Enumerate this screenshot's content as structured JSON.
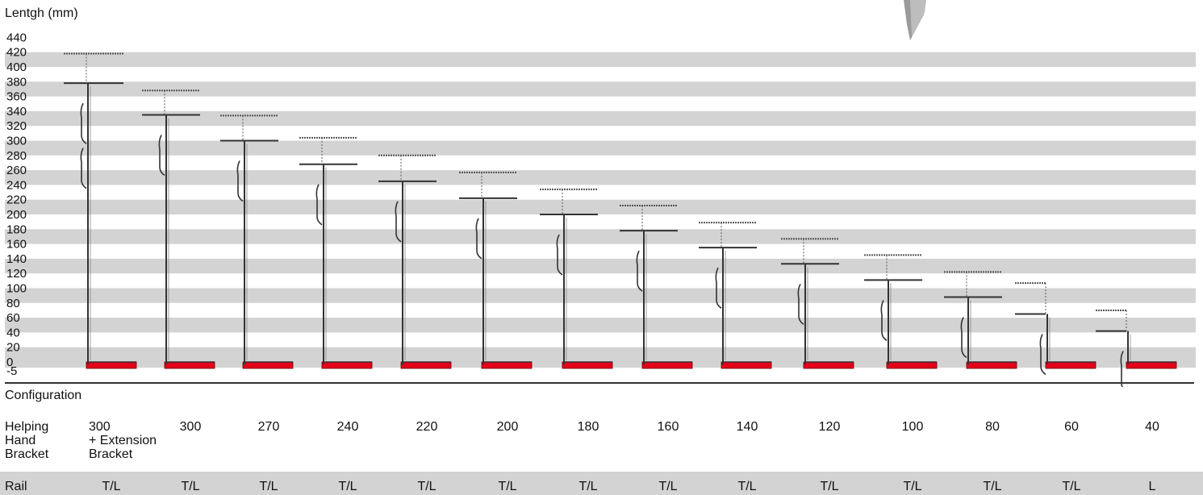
{
  "y_axis_label": "Lentgh (mm)",
  "y_ticks": [
    "440",
    "420",
    "400",
    "380",
    "360",
    "340",
    "320",
    "300",
    "280",
    "260",
    "240",
    "220",
    "200",
    "180",
    "160",
    "140",
    "120",
    "100",
    "80",
    "60",
    "40",
    "20",
    "0",
    "-5"
  ],
  "configuration_label": "Configuration",
  "rows": {
    "bracket_label": "Helping Hand Bracket",
    "bracket_values": [
      "300 + Extension Bracket",
      "300",
      "270",
      "240",
      "220",
      "200",
      "180",
      "160",
      "140",
      "120",
      "100",
      "80",
      "60",
      "40"
    ],
    "rail_label": "Rail",
    "rail_values": [
      "T/L",
      "T/L",
      "T/L",
      "T/L",
      "T/L",
      "T/L",
      "T/L",
      "T/L",
      "T/L",
      "T/L",
      "T/L",
      "T/L",
      "T/L",
      "L"
    ]
  },
  "colors": {
    "band": "#d3d3d3",
    "base_red": "#e3001b",
    "rail_row_bg": "#d3d3d3"
  },
  "chart_data": {
    "type": "diagram",
    "ylabel": "Lentgh (mm)",
    "ylim": [
      -5,
      440
    ],
    "brackets": [
      {
        "label": "300 + Extension Bracket",
        "bar_top": 378,
        "dotted_top": 418,
        "rail": "T/L"
      },
      {
        "label": "300",
        "bar_top": 335,
        "dotted_top": 368,
        "rail": "T/L"
      },
      {
        "label": "270",
        "bar_top": 300,
        "dotted_top": 334,
        "rail": "T/L"
      },
      {
        "label": "240",
        "bar_top": 268,
        "dotted_top": 304,
        "rail": "T/L"
      },
      {
        "label": "220",
        "bar_top": 245,
        "dotted_top": 280,
        "rail": "T/L"
      },
      {
        "label": "200",
        "bar_top": 222,
        "dotted_top": 257,
        "rail": "T/L"
      },
      {
        "label": "180",
        "bar_top": 200,
        "dotted_top": 234,
        "rail": "T/L"
      },
      {
        "label": "160",
        "bar_top": 178,
        "dotted_top": 212,
        "rail": "T/L"
      },
      {
        "label": "140",
        "bar_top": 155,
        "dotted_top": 189,
        "rail": "T/L"
      },
      {
        "label": "120",
        "bar_top": 133,
        "dotted_top": 167,
        "rail": "T/L"
      },
      {
        "label": "100",
        "bar_top": 111,
        "dotted_top": 145,
        "rail": "T/L"
      },
      {
        "label": "80",
        "bar_top": 88,
        "dotted_top": 122,
        "rail": "T/L"
      },
      {
        "label": "60",
        "bar_top": 65,
        "dotted_top": 107,
        "rail": "T/L"
      },
      {
        "label": "40",
        "bar_top": 42,
        "dotted_top": 70,
        "rail": "L"
      }
    ]
  }
}
